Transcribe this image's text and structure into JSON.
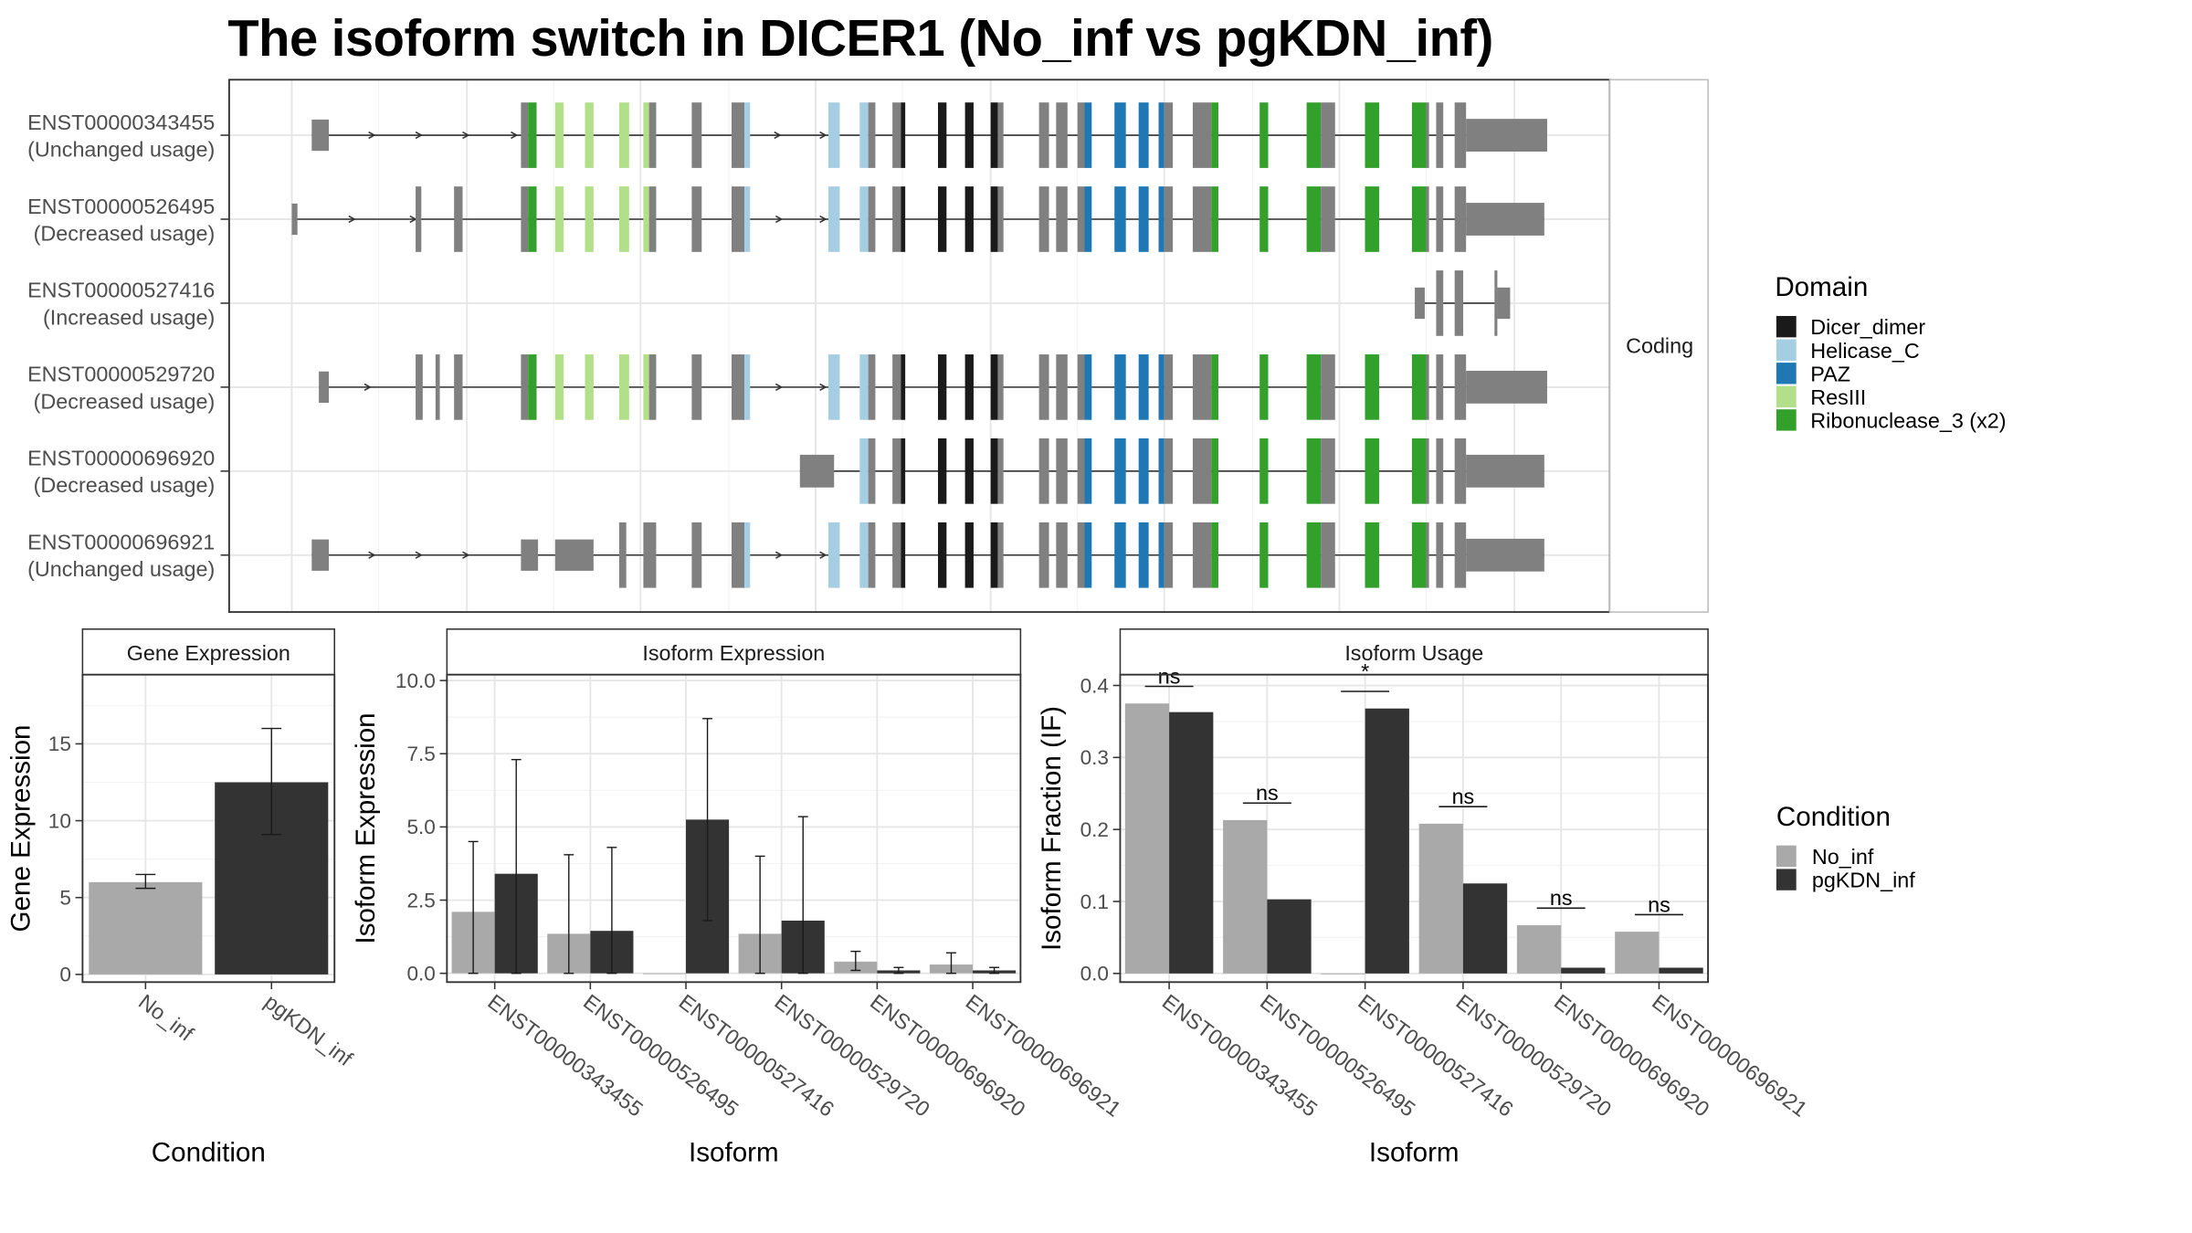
{
  "title": "The isoform switch in DICER1 (No_inf vs pgKDN_inf)",
  "structure_panel": {
    "strip_label": "Coding",
    "isoforms": [
      {
        "id": "ENST00000343455",
        "usage": "(Unchanged usage)"
      },
      {
        "id": "ENST00000526495",
        "usage": "(Decreased usage)"
      },
      {
        "id": "ENST00000527416",
        "usage": "(Increased usage)"
      },
      {
        "id": "ENST00000529720",
        "usage": "(Decreased usage)"
      },
      {
        "id": "ENST00000696920",
        "usage": "(Decreased usage)"
      },
      {
        "id": "ENST00000696921",
        "usage": "(Unchanged usage)"
      }
    ]
  },
  "domain_legend": {
    "title": "Domain",
    "items": [
      {
        "label": "Dicer_dimer",
        "color": "#1a1a1a"
      },
      {
        "label": "Helicase_C",
        "color": "#a6cee3"
      },
      {
        "label": "PAZ",
        "color": "#1f78b4"
      },
      {
        "label": "ResIII",
        "color": "#b2df8a"
      },
      {
        "label": "Ribonuclease_3 (x2)",
        "color": "#33a02c"
      }
    ],
    "exon_color": "#808080"
  },
  "condition_legend": {
    "title": "Condition",
    "items": [
      {
        "label": "No_inf",
        "color": "#a9a9a9"
      },
      {
        "label": "pgKDN_inf",
        "color": "#333333"
      }
    ]
  },
  "chart_data": [
    {
      "type": "bar",
      "title": "Gene Expression",
      "xlabel": "Condition",
      "ylabel": "Gene Expression",
      "categories": [
        "No_inf",
        "pgKDN_inf"
      ],
      "values": [
        6.0,
        12.5
      ],
      "errors_low": [
        5.6,
        9.1
      ],
      "errors_high": [
        6.5,
        16.0
      ],
      "ylim": [
        -0.5,
        19.5
      ],
      "yticks": [
        0,
        5,
        10,
        15
      ]
    },
    {
      "type": "bar",
      "title": "Isoform Expression",
      "xlabel": "Isoform",
      "ylabel": "Isoform Expression",
      "categories": [
        "ENST00000343455",
        "ENST00000526495",
        "ENST00000527416",
        "ENST00000529720",
        "ENST00000696920",
        "ENST00000696921"
      ],
      "series": [
        {
          "name": "No_inf",
          "values": [
            2.1,
            1.35,
            0.0,
            1.35,
            0.4,
            0.3
          ],
          "err_low": [
            0.0,
            0.0,
            0.0,
            0.0,
            0.1,
            0.0
          ],
          "err_high": [
            4.5,
            4.05,
            0.0,
            4.0,
            0.75,
            0.7
          ]
        },
        {
          "name": "pgKDN_inf",
          "values": [
            3.4,
            1.45,
            5.25,
            1.8,
            0.1,
            0.1
          ],
          "err_low": [
            0.0,
            0.0,
            1.8,
            0.0,
            0.0,
            0.0
          ],
          "err_high": [
            7.3,
            4.3,
            8.7,
            5.35,
            0.2,
            0.2
          ]
        }
      ],
      "ylim": [
        -0.3,
        10.2
      ],
      "yticks": [
        "0.0",
        "2.5",
        "5.0",
        "7.5",
        "10.0"
      ]
    },
    {
      "type": "bar",
      "title": "Isoform Usage",
      "xlabel": "Isoform",
      "ylabel": "Isoform Fraction (IF)",
      "categories": [
        "ENST00000343455",
        "ENST00000526495",
        "ENST00000527416",
        "ENST00000529720",
        "ENST00000696920",
        "ENST00000696921"
      ],
      "series": [
        {
          "name": "No_inf",
          "values": [
            0.375,
            0.213,
            0.0,
            0.208,
            0.067,
            0.058
          ]
        },
        {
          "name": "pgKDN_inf",
          "values": [
            0.363,
            0.103,
            0.368,
            0.125,
            0.008,
            0.008
          ]
        }
      ],
      "significance": [
        "ns",
        "ns",
        "*",
        "ns",
        "ns",
        "ns"
      ],
      "ylim": [
        -0.012,
        0.415
      ],
      "yticks": [
        "0.0",
        "0.1",
        "0.2",
        "0.3",
        "0.4"
      ]
    }
  ]
}
